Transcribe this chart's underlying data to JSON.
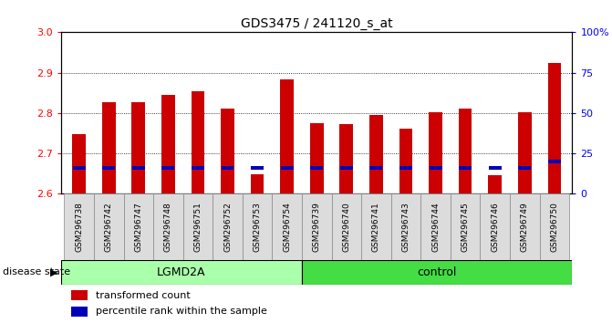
{
  "title": "GDS3475 / 241120_s_at",
  "samples": [
    "GSM296738",
    "GSM296742",
    "GSM296747",
    "GSM296748",
    "GSM296751",
    "GSM296752",
    "GSM296753",
    "GSM296754",
    "GSM296739",
    "GSM296740",
    "GSM296741",
    "GSM296743",
    "GSM296744",
    "GSM296745",
    "GSM296746",
    "GSM296749",
    "GSM296750"
  ],
  "transformed_counts": [
    2.748,
    2.828,
    2.826,
    2.845,
    2.855,
    2.812,
    2.648,
    2.884,
    2.775,
    2.773,
    2.796,
    2.762,
    2.802,
    2.81,
    2.645,
    2.803,
    2.924
  ],
  "percentile_ranks": [
    16,
    16,
    16,
    16,
    16,
    16,
    16,
    16,
    16,
    16,
    16,
    16,
    16,
    16,
    16,
    16,
    20
  ],
  "groups": [
    "LGMD2A",
    "LGMD2A",
    "LGMD2A",
    "LGMD2A",
    "LGMD2A",
    "LGMD2A",
    "LGMD2A",
    "LGMD2A",
    "control",
    "control",
    "control",
    "control",
    "control",
    "control",
    "control",
    "control",
    "control"
  ],
  "lgmd2a_color": "#AAFFAA",
  "control_color": "#44DD44",
  "bar_color": "#CC0000",
  "percentile_color": "#0000BB",
  "ylim_left": [
    2.6,
    3.0
  ],
  "ylim_right": [
    0,
    100
  ],
  "yticks_left": [
    2.6,
    2.7,
    2.8,
    2.9,
    3.0
  ],
  "ytick_labels_right": [
    "0",
    "25",
    "50",
    "75",
    "100%"
  ],
  "bar_width": 0.45,
  "bg_color": "#DCDCDC",
  "disease_state_label": "disease state",
  "legend_items": [
    "transformed count",
    "percentile rank within the sample"
  ]
}
